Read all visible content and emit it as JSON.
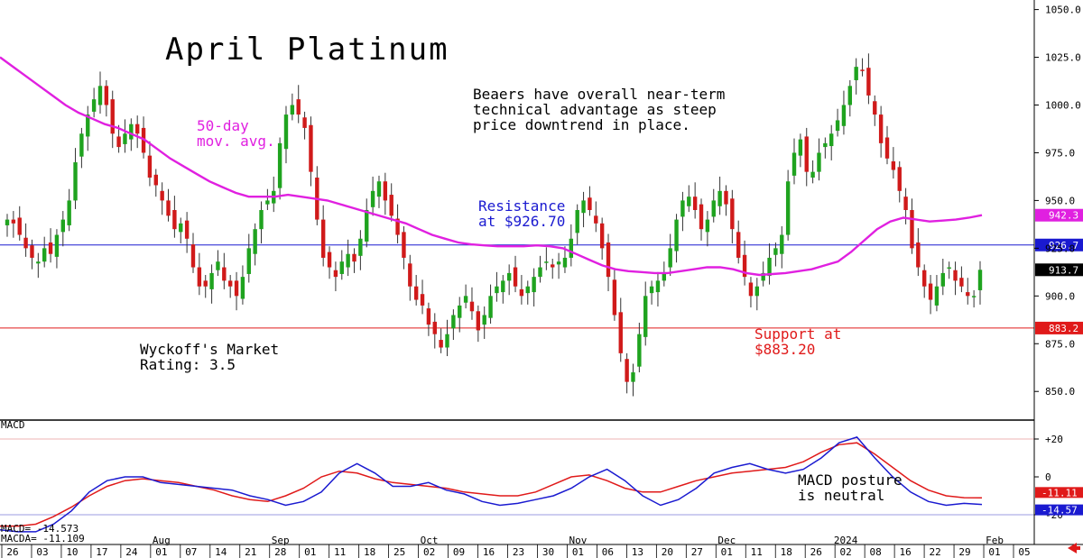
{
  "chart_data": [
    {
      "type": "candlestick",
      "title": "April Platinum",
      "note": "Beaers have overall near-term\ntechnical advantage as steep\nprice downtrend in place.",
      "ma_label": "50-day\nmov. avg.",
      "resistance_label": "Resistance\nat $926.70",
      "support_label": "Support at\n$883.20",
      "rating_label": "Wyckoff's Market\nRating: 3.5",
      "ylim": [
        835,
        1055
      ],
      "y_ticks": [
        850,
        875,
        900,
        925,
        950,
        975,
        1000,
        1025,
        1050
      ],
      "y_tick_labels": [
        "850.0",
        "875.0",
        "900.0",
        "925.0",
        "950.0",
        "975.0",
        "1000.0",
        "1025.0",
        "1050.0"
      ],
      "levels": {
        "resistance": 926.7,
        "support": 883.2,
        "last": 913.7,
        "ma_last": 942.3
      },
      "level_labels": {
        "resistance": "926.7",
        "support": "883.2",
        "last": "913.7",
        "ma_last": "942.3"
      },
      "colors": {
        "up": "#1fa31f",
        "down": "#d01a1a",
        "ma": "#e020e0",
        "resistance": "#1a1ad0",
        "support": "#e01a1a",
        "last": "#000000"
      },
      "closes": [
        940,
        938,
        932,
        925,
        920,
        918,
        925,
        922,
        932,
        940,
        950,
        970,
        985,
        995,
        1003,
        1010,
        1000,
        985,
        978,
        985,
        990,
        985,
        975,
        962,
        958,
        950,
        942,
        935,
        938,
        930,
        915,
        905,
        905,
        912,
        918,
        908,
        905,
        900,
        910,
        925,
        935,
        945,
        950,
        955,
        980,
        995,
        1000,
        995,
        988,
        965,
        940,
        920,
        915,
        910,
        918,
        922,
        918,
        930,
        945,
        955,
        960,
        950,
        942,
        932,
        920,
        905,
        898,
        895,
        885,
        880,
        873,
        880,
        890,
        895,
        900,
        892,
        882,
        890,
        900,
        905,
        908,
        912,
        905,
        900,
        905,
        910,
        915,
        918,
        915,
        918,
        920,
        930,
        945,
        950,
        945,
        938,
        925,
        910,
        890,
        870,
        855,
        860,
        880,
        900,
        905,
        908,
        912,
        925,
        940,
        950,
        952,
        945,
        935,
        940,
        950,
        955,
        948,
        935,
        920,
        910,
        900,
        905,
        912,
        920,
        925,
        932,
        960,
        975,
        982,
        965,
        965,
        975,
        980,
        985,
        992,
        1000,
        1010,
        1020,
        1018,
        1005,
        995,
        980,
        972,
        966,
        955,
        945,
        925,
        915,
        905,
        898,
        905,
        912,
        915,
        908,
        905,
        900,
        900,
        913.7
      ],
      "ma50": [
        1025,
        1020,
        1015,
        1010,
        1005,
        1000,
        996,
        993,
        990,
        988,
        985,
        982,
        977,
        972,
        968,
        964,
        960,
        957,
        954,
        952,
        952,
        952,
        953,
        952,
        951,
        950,
        948,
        946,
        944,
        942,
        940,
        938,
        935,
        932,
        930,
        928,
        927,
        926.5,
        926,
        926,
        926,
        926.5,
        926,
        925,
        922,
        919,
        916,
        914,
        913,
        912.5,
        912,
        912,
        913,
        914,
        915,
        915,
        914,
        912,
        911,
        911.5,
        912,
        913,
        914,
        916,
        918,
        923,
        929,
        935,
        939,
        941,
        940,
        939,
        939.5,
        940,
        941,
        942.3
      ],
      "x_labels": [
        "26",
        "03",
        "10",
        "17",
        "24",
        "01",
        "07",
        "14",
        "21",
        "28",
        "01",
        "11",
        "18",
        "25",
        "02",
        "09",
        "16",
        "23",
        "30",
        "01",
        "06",
        "13",
        "20",
        "27",
        "01",
        "11",
        "18",
        "26",
        "02",
        "08",
        "16",
        "22",
        "29",
        "01",
        "05"
      ],
      "month_labels": [
        "Aug",
        "Sep",
        "Oct",
        "Nov",
        "Dec",
        "2024",
        "Feb"
      ]
    },
    {
      "type": "line",
      "title": "MACD",
      "note": "MACD posture\nis neutral",
      "ylim": [
        -30,
        30
      ],
      "y_ticks": [
        20,
        0,
        -20
      ],
      "y_tick_labels": [
        "+20",
        "0",
        "-20"
      ],
      "macd_label": "MACD= -14.573",
      "macda_label": "MACDA= -11.109",
      "last_labels": {
        "macd": "-14.57",
        "macda": "-11.11"
      },
      "colors": {
        "macd": "#1a1ad0",
        "macda": "#e01a1a",
        "guides": "#7a7ad8"
      },
      "macd": [
        -28,
        -29,
        -29,
        -25,
        -18,
        -8,
        -2,
        0,
        0,
        -3,
        -4,
        -5,
        -6,
        -7,
        -10,
        -12,
        -15,
        -13,
        -8,
        2,
        7,
        2,
        -5,
        -5,
        -3,
        -7,
        -9,
        -13,
        -15,
        -14,
        -12,
        -10,
        -6,
        0,
        4,
        -2,
        -10,
        -15,
        -12,
        -6,
        2,
        5,
        7,
        4,
        2,
        4,
        10,
        18,
        21,
        10,
        0,
        -8,
        -13,
        -15,
        -14,
        -14.573
      ],
      "macda": [
        -26,
        -26,
        -25,
        -21,
        -16,
        -10,
        -5,
        -2,
        -1,
        -2,
        -3,
        -5,
        -7,
        -10,
        -12,
        -13,
        -10,
        -6,
        0,
        3,
        2,
        -1,
        -3,
        -4,
        -5,
        -6,
        -8,
        -9,
        -10,
        -10,
        -8,
        -4,
        0,
        1,
        -2,
        -6,
        -8,
        -8,
        -5,
        -2,
        0,
        2,
        3,
        4,
        5,
        8,
        13,
        17,
        18,
        12,
        5,
        -2,
        -7,
        -10,
        -11,
        -11.109
      ]
    }
  ]
}
